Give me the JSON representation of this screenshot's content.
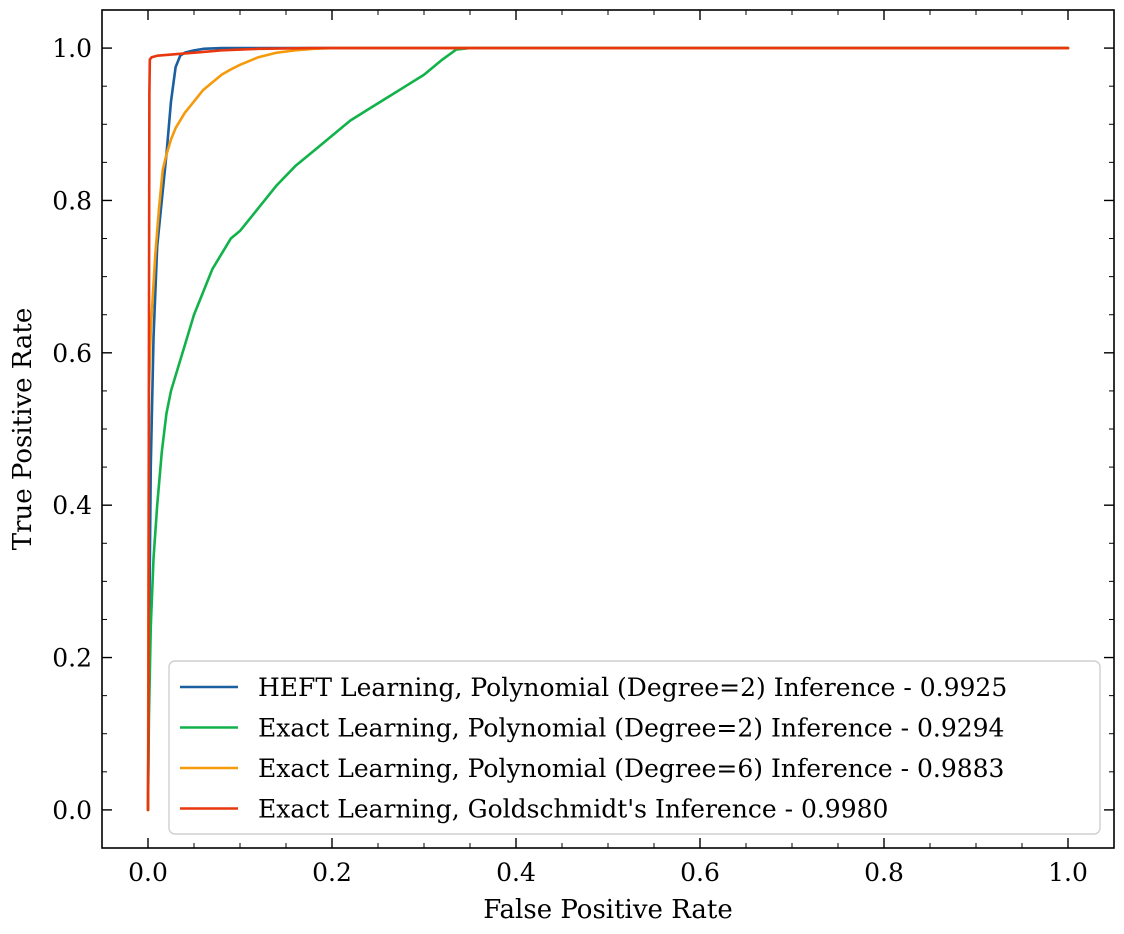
{
  "chart_data": {
    "type": "line",
    "title": "",
    "xlabel": "False Positive Rate",
    "ylabel": "True Positive Rate",
    "xlim": [
      -0.05,
      1.05
    ],
    "ylim": [
      -0.05,
      1.05
    ],
    "xticks": [
      0.0,
      0.2,
      0.4,
      0.6,
      0.8,
      1.0
    ],
    "yticks": [
      0.0,
      0.2,
      0.4,
      0.6,
      0.8,
      1.0
    ],
    "xtick_labels": [
      "0.0",
      "0.2",
      "0.4",
      "0.6",
      "0.8",
      "1.0"
    ],
    "ytick_labels": [
      "0.0",
      "0.2",
      "0.4",
      "0.6",
      "0.8",
      "1.0"
    ],
    "grid": false,
    "legend_position": "lower-right",
    "series": [
      {
        "name": "HEFT Learning, Polynomial (Degree=2) Inference - 0.9925",
        "color": "#1a5fa0",
        "x": [
          0,
          0.001,
          0.003,
          0.006,
          0.01,
          0.015,
          0.02,
          0.025,
          0.03,
          0.035,
          0.04,
          0.05,
          0.06,
          0.08,
          0.1,
          0.15,
          0.2,
          0.4,
          0.6,
          0.8,
          1.0
        ],
        "y": [
          0,
          0.2,
          0.45,
          0.62,
          0.74,
          0.8,
          0.86,
          0.93,
          0.975,
          0.99,
          0.994,
          0.997,
          0.999,
          1.0,
          1.0,
          1.0,
          1.0,
          1.0,
          1.0,
          1.0,
          1.0
        ]
      },
      {
        "name": "Exact Learning, Polynomial (Degree=2) Inference - 0.9294",
        "color": "#12b24a",
        "x": [
          0,
          0.001,
          0.003,
          0.006,
          0.01,
          0.015,
          0.02,
          0.025,
          0.03,
          0.04,
          0.05,
          0.06,
          0.07,
          0.08,
          0.09,
          0.1,
          0.12,
          0.14,
          0.16,
          0.18,
          0.2,
          0.22,
          0.24,
          0.26,
          0.28,
          0.3,
          0.32,
          0.335,
          0.35,
          0.4,
          0.6,
          0.8,
          1.0
        ],
        "y": [
          0,
          0.12,
          0.24,
          0.33,
          0.4,
          0.47,
          0.52,
          0.55,
          0.57,
          0.61,
          0.65,
          0.68,
          0.71,
          0.73,
          0.75,
          0.76,
          0.79,
          0.82,
          0.845,
          0.865,
          0.885,
          0.905,
          0.92,
          0.935,
          0.95,
          0.965,
          0.985,
          0.998,
          1.0,
          1.0,
          1.0,
          1.0,
          1.0
        ]
      },
      {
        "name": "Exact Learning, Polynomial (Degree=6) Inference - 0.9883",
        "color": "#f59a0c",
        "x": [
          0,
          0.001,
          0.003,
          0.005,
          0.008,
          0.012,
          0.016,
          0.02,
          0.025,
          0.03,
          0.04,
          0.05,
          0.06,
          0.07,
          0.08,
          0.09,
          0.1,
          0.12,
          0.14,
          0.16,
          0.18,
          0.2,
          0.3,
          0.5,
          0.7,
          0.9,
          1.0
        ],
        "y": [
          0,
          0.55,
          0.63,
          0.67,
          0.73,
          0.79,
          0.84,
          0.86,
          0.88,
          0.895,
          0.915,
          0.93,
          0.945,
          0.955,
          0.965,
          0.972,
          0.978,
          0.988,
          0.994,
          0.997,
          0.999,
          1.0,
          1.0,
          1.0,
          1.0,
          1.0,
          1.0
        ]
      },
      {
        "name": "Exact Learning, Goldschmidt's Inference - 0.9980",
        "color": "#e8360f",
        "x": [
          0,
          0.0005,
          0.001,
          0.0015,
          0.002,
          0.004,
          0.01,
          0.02,
          0.04,
          0.06,
          0.08,
          0.1,
          0.12,
          0.15,
          0.18,
          0.2,
          0.4,
          0.6,
          0.8,
          1.0
        ],
        "y": [
          0,
          0.12,
          0.6,
          0.94,
          0.985,
          0.988,
          0.99,
          0.991,
          0.993,
          0.995,
          0.997,
          0.998,
          0.999,
          0.9995,
          1.0,
          1.0,
          1.0,
          1.0,
          1.0,
          1.0
        ]
      }
    ]
  }
}
